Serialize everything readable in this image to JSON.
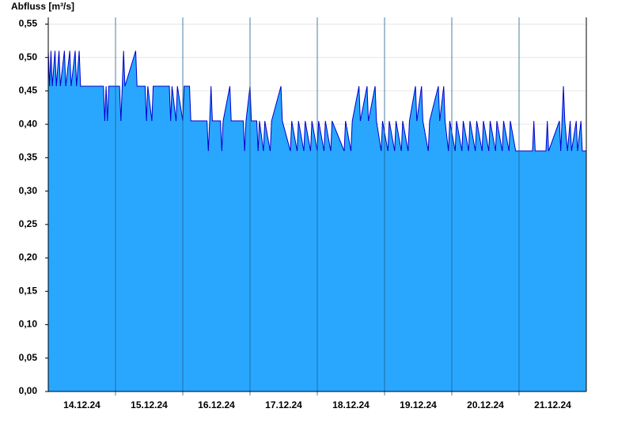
{
  "chart_data": {
    "type": "area",
    "title": "Abfluss [m³/s]",
    "xlim": [
      0,
      8
    ],
    "ylim": [
      0,
      0.56
    ],
    "yticks": [
      {
        "value": 0,
        "label": "0,00"
      },
      {
        "value": 0.05,
        "label": "0,05"
      },
      {
        "value": 0.1,
        "label": "0,10"
      },
      {
        "value": 0.15,
        "label": "0,15"
      },
      {
        "value": 0.2,
        "label": "0,20"
      },
      {
        "value": 0.25,
        "label": "0,25"
      },
      {
        "value": 0.3,
        "label": "0,30"
      },
      {
        "value": 0.35,
        "label": "0,35"
      },
      {
        "value": 0.4,
        "label": "0,40"
      },
      {
        "value": 0.45,
        "label": "0,45"
      },
      {
        "value": 0.5,
        "label": "0,50"
      },
      {
        "value": 0.55,
        "label": "0,55"
      }
    ],
    "xticks": [
      {
        "value": 0.5,
        "label": "14.12.24"
      },
      {
        "value": 1.5,
        "label": "15.12.24"
      },
      {
        "value": 2.5,
        "label": "16.12.24"
      },
      {
        "value": 3.5,
        "label": "17.12.24"
      },
      {
        "value": 4.5,
        "label": "18.12.24"
      },
      {
        "value": 5.5,
        "label": "19.12.24"
      },
      {
        "value": 6.5,
        "label": "20.12.24"
      },
      {
        "value": 7.5,
        "label": "21.12.24"
      }
    ],
    "day_lines": [
      1,
      2,
      3,
      4,
      5,
      6,
      7
    ],
    "grid": true,
    "series": [
      {
        "color": "#0000cc",
        "fill": "#29a7ff",
        "x": [
          0,
          0.02,
          0.04,
          0.06,
          0.1,
          0.12,
          0.16,
          0.18,
          0.24,
          0.26,
          0.32,
          0.34,
          0.4,
          0.42,
          0.46,
          0.48,
          0.82,
          0.84,
          0.86,
          0.88,
          0.9,
          1.06,
          1.08,
          1.1,
          1.12,
          1.14,
          1.3,
          1.32,
          1.44,
          1.46,
          1.48,
          1.54,
          1.56,
          1.8,
          1.82,
          1.84,
          1.9,
          1.92,
          2.0,
          2.02,
          2.1,
          2.12,
          2.36,
          2.38,
          2.4,
          2.42,
          2.44,
          2.56,
          2.58,
          2.6,
          2.7,
          2.72,
          2.9,
          2.92,
          2.94,
          3.0,
          3.02,
          3.1,
          3.12,
          3.14,
          3.2,
          3.22,
          3.3,
          3.32,
          3.46,
          3.48,
          3.6,
          3.62,
          3.7,
          3.72,
          3.8,
          3.82,
          3.9,
          3.92,
          4.0,
          4.02,
          4.1,
          4.12,
          4.2,
          4.22,
          4.4,
          4.42,
          4.5,
          4.52,
          4.62,
          4.64,
          4.74,
          4.76,
          4.86,
          4.88,
          4.95,
          4.97,
          5.05,
          5.07,
          5.15,
          5.17,
          5.25,
          5.27,
          5.35,
          5.37,
          5.46,
          5.48,
          5.55,
          5.57,
          5.65,
          5.67,
          5.8,
          5.82,
          5.88,
          5.9,
          5.95,
          5.97,
          6.05,
          6.07,
          6.15,
          6.17,
          6.25,
          6.27,
          6.35,
          6.37,
          6.45,
          6.47,
          6.55,
          6.57,
          6.65,
          6.67,
          6.75,
          6.77,
          6.85,
          6.87,
          6.95,
          6.97,
          7.2,
          7.22,
          7.24,
          7.4,
          7.42,
          7.44,
          7.6,
          7.62,
          7.66,
          7.68,
          7.72,
          7.76,
          7.78,
          7.85,
          7.87,
          7.92,
          7.94,
          8.0
        ],
        "values": [
          0.51,
          0.457,
          0.51,
          0.457,
          0.51,
          0.457,
          0.51,
          0.457,
          0.51,
          0.457,
          0.51,
          0.457,
          0.51,
          0.457,
          0.51,
          0.457,
          0.457,
          0.405,
          0.457,
          0.405,
          0.457,
          0.457,
          0.405,
          0.457,
          0.51,
          0.457,
          0.51,
          0.457,
          0.457,
          0.405,
          0.457,
          0.405,
          0.457,
          0.457,
          0.405,
          0.457,
          0.405,
          0.457,
          0.405,
          0.457,
          0.457,
          0.405,
          0.405,
          0.36,
          0.405,
          0.457,
          0.405,
          0.405,
          0.36,
          0.405,
          0.457,
          0.405,
          0.405,
          0.36,
          0.405,
          0.457,
          0.405,
          0.405,
          0.36,
          0.405,
          0.36,
          0.405,
          0.36,
          0.405,
          0.457,
          0.405,
          0.36,
          0.405,
          0.36,
          0.405,
          0.36,
          0.405,
          0.36,
          0.405,
          0.36,
          0.405,
          0.36,
          0.405,
          0.36,
          0.405,
          0.36,
          0.405,
          0.36,
          0.405,
          0.457,
          0.405,
          0.457,
          0.405,
          0.457,
          0.405,
          0.36,
          0.405,
          0.36,
          0.405,
          0.36,
          0.405,
          0.36,
          0.405,
          0.36,
          0.405,
          0.457,
          0.405,
          0.457,
          0.405,
          0.36,
          0.405,
          0.457,
          0.405,
          0.457,
          0.405,
          0.36,
          0.405,
          0.36,
          0.405,
          0.36,
          0.405,
          0.36,
          0.405,
          0.36,
          0.405,
          0.36,
          0.405,
          0.36,
          0.405,
          0.36,
          0.405,
          0.36,
          0.405,
          0.36,
          0.405,
          0.36,
          0.36,
          0.36,
          0.405,
          0.36,
          0.36,
          0.405,
          0.36,
          0.405,
          0.36,
          0.457,
          0.405,
          0.36,
          0.405,
          0.36,
          0.405,
          0.36,
          0.405,
          0.36,
          0.36
        ]
      }
    ]
  }
}
